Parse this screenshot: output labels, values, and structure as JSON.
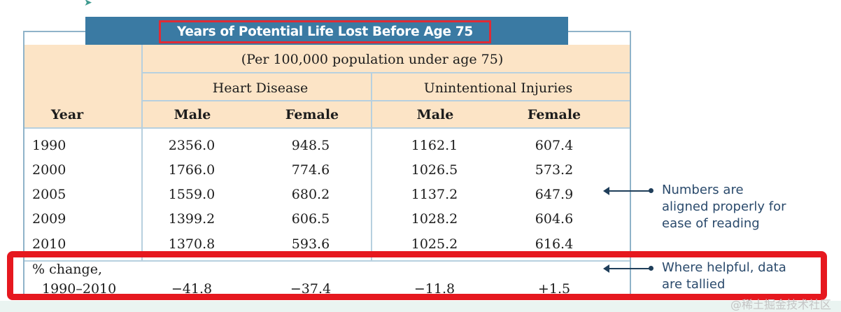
{
  "table": {
    "title": "Years of Potential Life Lost Before Age 75",
    "subtitle": "(Per 100,000 population under age 75)",
    "groups": [
      "Heart Disease",
      "Unintentional Injuries"
    ],
    "year_header": "Year",
    "columns": [
      "Male",
      "Female",
      "Male",
      "Female"
    ],
    "rows": [
      {
        "year": "1990",
        "values": [
          "2356.0",
          "948.5",
          "1162.1",
          "607.4"
        ]
      },
      {
        "year": "2000",
        "values": [
          "1766.0",
          "774.6",
          "1026.5",
          "573.2"
        ]
      },
      {
        "year": "2005",
        "values": [
          "1559.0",
          "680.2",
          "1137.2",
          "647.9"
        ]
      },
      {
        "year": "2009",
        "values": [
          "1399.2",
          "606.5",
          "1028.2",
          "604.6"
        ]
      },
      {
        "year": "2010",
        "values": [
          "1370.8",
          "593.6",
          "1025.2",
          "616.4"
        ]
      }
    ],
    "change_row": {
      "label_line1": "% change,",
      "label_line2": "1990–2010",
      "values": [
        "−41.8",
        "−37.4",
        "−11.8",
        "+1.5"
      ]
    }
  },
  "annotations": {
    "aligned": [
      "Numbers are",
      "aligned properly for",
      "ease of reading"
    ],
    "tallied": [
      "Where helpful, data",
      "are tallied"
    ]
  },
  "watermark": "@稀土掘金技术社区",
  "colors": {
    "title_bar": "#3a7aa3",
    "header_fill": "#fce4c6",
    "highlight": "#e6181f",
    "annotation_text": "#2a4a6c"
  }
}
